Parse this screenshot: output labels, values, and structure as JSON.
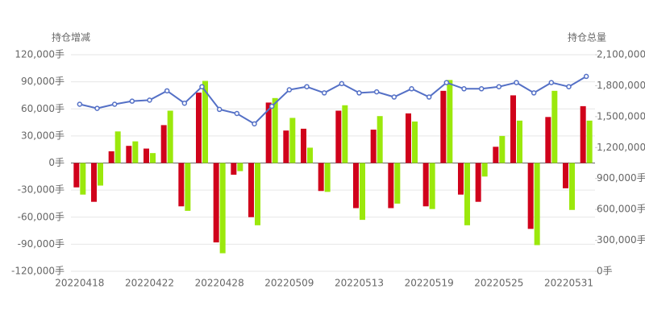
{
  "chart_data": {
    "type": "bar",
    "y_label": "持仓增减",
    "y2_label": "持仓总量",
    "categories": [
      "20220418",
      null,
      null,
      null,
      "20220422",
      null,
      null,
      null,
      "20220428",
      null,
      null,
      null,
      "20220509",
      null,
      null,
      null,
      "20220513",
      null,
      null,
      null,
      "20220519",
      null,
      null,
      null,
      "20220525",
      null,
      null,
      null,
      "20220531",
      null
    ],
    "series": [
      {
        "type": "bar",
        "color": "#d0021b",
        "values": [
          -27000,
          -43000,
          13000,
          19000,
          16000,
          42000,
          -48000,
          78000,
          -88000,
          -13000,
          -60000,
          67000,
          36000,
          38000,
          -31000,
          58000,
          -50000,
          37000,
          -50000,
          55000,
          -48000,
          80000,
          -35000,
          -43000,
          18000,
          75000,
          -73000,
          51000,
          -28000,
          63000
        ]
      },
      {
        "type": "bar",
        "color": "#9be80c",
        "values": [
          -35000,
          -25000,
          35000,
          24000,
          11000,
          58000,
          -53000,
          91000,
          -100000,
          -9000,
          -69000,
          72000,
          50000,
          17000,
          -32000,
          64000,
          -63000,
          52000,
          -45000,
          46000,
          -51000,
          92000,
          -69000,
          -15000,
          30000,
          47000,
          -91000,
          80000,
          -52000,
          47000
        ]
      },
      {
        "type": "line",
        "axis": "y2",
        "color": "#5470c6",
        "values": [
          1620000,
          1580000,
          1620000,
          1650000,
          1660000,
          1750000,
          1630000,
          1790000,
          1570000,
          1530000,
          1430000,
          1600000,
          1760000,
          1790000,
          1730000,
          1820000,
          1730000,
          1740000,
          1690000,
          1770000,
          1690000,
          1830000,
          1770000,
          1770000,
          1790000,
          1830000,
          1730000,
          1830000,
          1790000,
          1890000
        ]
      }
    ],
    "ylim": [
      -120000,
      120000
    ],
    "yticks": [
      {
        "value": -120000,
        "label": "-120,000手"
      },
      {
        "value": -90000,
        "label": "-90,000手"
      },
      {
        "value": -60000,
        "label": "-60,000手"
      },
      {
        "value": -30000,
        "label": "-30,000手"
      },
      {
        "value": 0,
        "label": "0手"
      },
      {
        "value": 30000,
        "label": "30,000手"
      },
      {
        "value": 60000,
        "label": "60,000手"
      },
      {
        "value": 90000,
        "label": "90,000手"
      },
      {
        "value": 120000,
        "label": "120,000手"
      }
    ],
    "y2lim": [
      0,
      2100000
    ],
    "y2ticks": [
      {
        "value": 0,
        "label": "0手"
      },
      {
        "value": 300000,
        "label": "300,000手"
      },
      {
        "value": 600000,
        "label": "600,000手"
      },
      {
        "value": 900000,
        "label": "900,000手"
      },
      {
        "value": 1200000,
        "label": "1,200,000手"
      },
      {
        "value": 1500000,
        "label": "1,500,000手"
      },
      {
        "value": 1800000,
        "label": "1,800,000手"
      },
      {
        "value": 2100000,
        "label": "2,100,000手"
      }
    ],
    "grid": true
  }
}
